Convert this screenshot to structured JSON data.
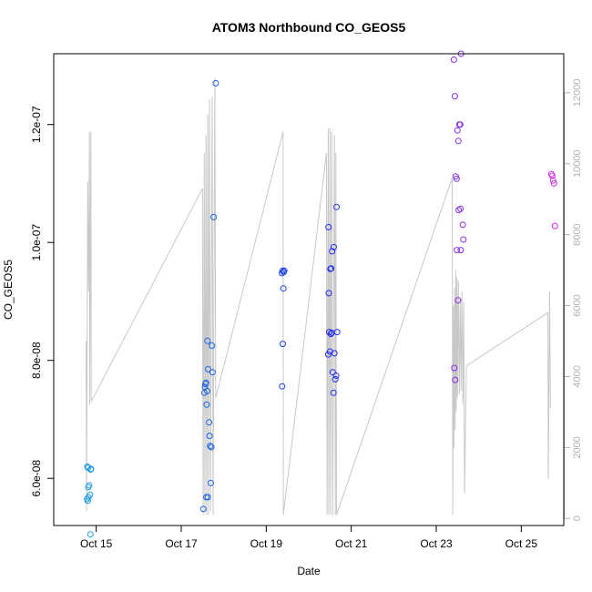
{
  "chart_data": {
    "type": "scatter",
    "title": "ATOM3 Northbound CO_GEOS5",
    "xlabel": "Date",
    "ylabel": "CO_GEOS5",
    "x_ticks": [
      "Oct 15",
      "Oct 17",
      "Oct 19",
      "Oct 21",
      "Oct 23",
      "Oct 25"
    ],
    "y_ticks": [
      "6.0e-08",
      "8.0e-08",
      "1.0e-07",
      "1.2e-07"
    ],
    "y_right_ticks": [
      "0",
      "2000",
      "4000",
      "6000",
      "8000",
      "10000",
      "12000"
    ],
    "xlim": [
      "2017-10-14",
      "2017-10-26"
    ],
    "ylim": [
      5.2e-08,
      1.32e-07
    ],
    "y_right_lim": [
      -200,
      13100
    ],
    "grid": false,
    "colors": {
      "altitude_line": "#c8c8c8",
      "right_axis": "#b0b0b0",
      "points_early": "#1e9de0",
      "points_mid": "#1a2ef0",
      "points_late": "#d42ae8"
    },
    "series": [
      {
        "points": [
          [
            "2017-10-14 19:00",
            6.2e-08
          ],
          [
            "2017-10-14 19:20",
            6.18e-08
          ],
          [
            "2017-10-14 20:00",
            5.88e-08
          ],
          [
            "2017-10-14 19:30",
            5.85e-08
          ],
          [
            "2017-10-14 18:50",
            5.65e-08
          ],
          [
            "2017-10-14 19:10",
            5.62e-08
          ],
          [
            "2017-10-14 19:40",
            5.68e-08
          ],
          [
            "2017-10-14 20:30",
            5.72e-08
          ],
          [
            "2017-10-14 21:00",
            6.16e-08
          ],
          [
            "2017-10-14 20:50",
            6.15e-08
          ],
          [
            "2017-10-14 20:40",
            5.05e-08
          ]
        ]
      },
      {
        "points": [
          [
            "2017-10-17 12:30",
            5.48e-08
          ],
          [
            "2017-10-17 14:10",
            5.68e-08
          ],
          [
            "2017-10-17 15:00",
            5.68e-08
          ],
          [
            "2017-10-17 13:00",
            7.45e-08
          ],
          [
            "2017-10-17 13:20",
            7.55e-08
          ],
          [
            "2017-10-17 13:40",
            7.6e-08
          ],
          [
            "2017-10-17 14:00",
            7.62e-08
          ],
          [
            "2017-10-17 14:20",
            7.25e-08
          ],
          [
            "2017-10-17 14:40",
            7.48e-08
          ],
          [
            "2017-10-17 15:10",
            7.85e-08
          ],
          [
            "2017-10-17 15:40",
            6.95e-08
          ],
          [
            "2017-10-17 16:00",
            6.72e-08
          ],
          [
            "2017-10-17 16:20",
            6.55e-08
          ],
          [
            "2017-10-17 17:00",
            6.53e-08
          ],
          [
            "2017-10-17 16:40",
            5.92e-08
          ],
          [
            "2017-10-17 14:50",
            8.33e-08
          ],
          [
            "2017-10-17 17:20",
            8.25e-08
          ],
          [
            "2017-10-17 17:40",
            7.8e-08
          ],
          [
            "2017-10-17 18:20",
            1.043e-07
          ],
          [
            "2017-10-17 19:30",
            1.27e-07
          ],
          [
            "2017-10-19 09:00",
            7.56e-08
          ],
          [
            "2017-10-19 09:20",
            8.28e-08
          ],
          [
            "2017-10-19 09:40",
            9.22e-08
          ],
          [
            "2017-10-19 08:50",
            9.48e-08
          ],
          [
            "2017-10-19 09:10",
            9.52e-08
          ],
          [
            "2017-10-19 09:50",
            9.5e-08
          ],
          [
            "2017-10-19 10:10",
            9.52e-08
          ]
        ]
      },
      {
        "points": [
          [
            "2017-10-20 11:00",
            8.1e-08
          ],
          [
            "2017-10-20 11:30",
            8.48e-08
          ],
          [
            "2017-10-20 12:00",
            8.15e-08
          ],
          [
            "2017-10-20 12:30",
            8.45e-08
          ],
          [
            "2017-10-20 13:00",
            8.47e-08
          ],
          [
            "2017-10-20 13:30",
            7.8e-08
          ],
          [
            "2017-10-20 14:00",
            7.45e-08
          ],
          [
            "2017-10-20 14:30",
            8.12e-08
          ],
          [
            "2017-10-20 15:00",
            7.68e-08
          ],
          [
            "2017-10-20 15:30",
            7.74e-08
          ],
          [
            "2017-10-20 16:00",
            8.48e-08
          ],
          [
            "2017-10-20 11:20",
            9.14e-08
          ],
          [
            "2017-10-20 12:10",
            9.55e-08
          ],
          [
            "2017-10-20 12:40",
            9.56e-08
          ],
          [
            "2017-10-20 13:10",
            9.85e-08
          ],
          [
            "2017-10-20 14:10",
            9.92e-08
          ],
          [
            "2017-10-20 11:10",
            1.026e-07
          ],
          [
            "2017-10-20 15:40",
            1.06e-07
          ]
        ]
      },
      {
        "points": [
          [
            "2017-10-23 10:00",
            1.31e-07
          ],
          [
            "2017-10-23 10:30",
            1.248e-07
          ],
          [
            "2017-10-23 14:00",
            1.32e-07
          ],
          [
            "2017-10-23 13:30",
            1.2e-07
          ],
          [
            "2017-10-23 13:00",
            1.2e-07
          ],
          [
            "2017-10-23 12:00",
            1.19e-07
          ],
          [
            "2017-10-23 12:30",
            1.172e-07
          ],
          [
            "2017-10-23 11:00",
            1.112e-07
          ],
          [
            "2017-10-23 11:30",
            1.108e-07
          ],
          [
            "2017-10-23 12:40",
            1.055e-07
          ],
          [
            "2017-10-23 13:40",
            1.057e-07
          ],
          [
            "2017-10-23 15:00",
            1.03e-07
          ],
          [
            "2017-10-23 15:20",
            1.005e-07
          ],
          [
            "2017-10-23 11:40",
            9.87e-08
          ],
          [
            "2017-10-23 13:50",
            9.87e-08
          ],
          [
            "2017-10-23 12:20",
            9.02e-08
          ],
          [
            "2017-10-23 10:10",
            7.87e-08
          ],
          [
            "2017-10-23 10:40",
            7.67e-08
          ],
          [
            "2017-10-25 17:00",
            1.116e-07
          ],
          [
            "2017-10-25 17:30",
            1.113e-07
          ],
          [
            "2017-10-25 18:00",
            1.105e-07
          ],
          [
            "2017-10-25 18:30",
            1.1e-07
          ],
          [
            "2017-10-25 19:00",
            1.028e-07
          ]
        ]
      },
      {
        "points": [
          [
            "2017-10-14 18:20",
            5000
          ],
          [
            "2017-10-14 18:30",
            200
          ],
          [
            "2017-10-14 19:10",
            9500
          ],
          [
            "2017-10-14 19:40",
            6400
          ],
          [
            "2017-10-14 20:10",
            10900
          ],
          [
            "2017-10-14 20:20",
            3200
          ],
          [
            "2017-10-14 21:00",
            10900
          ],
          [
            "2017-10-14 21:10",
            3300
          ],
          [
            "2017-10-17 12:00",
            9300
          ],
          [
            "2017-10-17 12:20",
            100
          ],
          [
            "2017-10-17 13:00",
            10300
          ],
          [
            "2017-10-17 13:20",
            200
          ],
          [
            "2017-10-17 14:00",
            10800
          ],
          [
            "2017-10-17 14:20",
            100
          ],
          [
            "2017-10-17 15:00",
            11400
          ],
          [
            "2017-10-17 15:20",
            100
          ],
          [
            "2017-10-17 16:00",
            11800
          ],
          [
            "2017-10-17 16:30",
            200
          ],
          [
            "2017-10-17 17:30",
            11900
          ],
          [
            "2017-10-17 18:00",
            100
          ],
          [
            "2017-10-17 19:00",
            12400
          ],
          [
            "2017-10-17 19:30",
            3400
          ],
          [
            "2017-10-19 09:30",
            10900
          ],
          [
            "2017-10-19 09:40",
            100
          ],
          [
            "2017-10-20 10:00",
            10300
          ],
          [
            "2017-10-20 10:20",
            100
          ],
          [
            "2017-10-20 11:00",
            11000
          ],
          [
            "2017-10-20 11:20",
            100
          ],
          [
            "2017-10-20 12:00",
            11000
          ],
          [
            "2017-10-20 12:20",
            100
          ],
          [
            "2017-10-20 13:00",
            10900
          ],
          [
            "2017-10-20 13:30",
            100
          ],
          [
            "2017-10-20 14:30",
            10800
          ],
          [
            "2017-10-20 15:00",
            100
          ],
          [
            "2017-10-20 15:20",
            10300
          ],
          [
            "2017-10-20 15:40",
            100
          ],
          [
            "2017-10-23 09:00",
            9600
          ],
          [
            "2017-10-23 09:20",
            100
          ],
          [
            "2017-10-23 09:40",
            6000
          ],
          [
            "2017-10-23 10:00",
            2000
          ],
          [
            "2017-10-23 10:20",
            6500
          ],
          [
            "2017-10-23 10:40",
            2500
          ],
          [
            "2017-10-23 11:00",
            7000
          ],
          [
            "2017-10-23 11:20",
            3000
          ],
          [
            "2017-10-23 11:40",
            6800
          ],
          [
            "2017-10-23 12:00",
            3400
          ],
          [
            "2017-10-23 12:30",
            6700
          ],
          [
            "2017-10-23 13:00",
            3500
          ],
          [
            "2017-10-23 13:30",
            6200
          ],
          [
            "2017-10-23 14:00",
            3600
          ],
          [
            "2017-10-23 14:30",
            6400
          ],
          [
            "2017-10-23 15:00",
            3200
          ],
          [
            "2017-10-23 15:30",
            6100
          ],
          [
            "2017-10-23 16:00",
            700
          ],
          [
            "2017-10-23 17:00",
            4300
          ],
          [
            "2017-10-25 15:00",
            5800
          ],
          [
            "2017-10-25 15:20",
            1100
          ],
          [
            "2017-10-25 16:00",
            6400
          ],
          [
            "2017-10-25 16:30",
            3100
          ]
        ]
      }
    ]
  }
}
